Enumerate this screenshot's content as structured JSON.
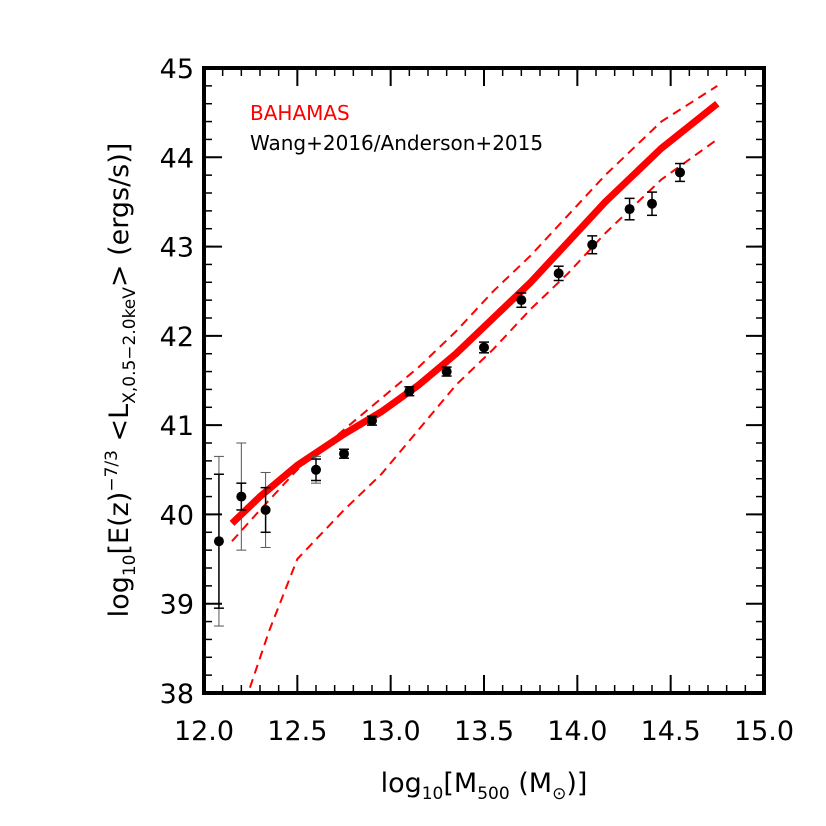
{
  "chart_data": {
    "type": "scatter",
    "xlabel": {
      "prefix": "log",
      "prefix_sub": "10",
      "body": "[M",
      "body_sub": "500",
      "tail": " (M",
      "tail_sub": "⊙",
      "end": ")]"
    },
    "ylabel": {
      "prefix": "log",
      "prefix_sub": "10",
      "body": "[E(z)",
      "body_sup": "−7/3",
      "mid": " <L",
      "mid_sub": "X,0.5−2.0keV",
      "end": "> (ergs/s)]"
    },
    "xlim": [
      12.0,
      15.0
    ],
    "ylim": [
      38,
      45
    ],
    "x_ticks": [
      "12.0",
      "12.5",
      "13.0",
      "13.5",
      "14.0",
      "14.5",
      "15.0"
    ],
    "y_ticks": [
      "38",
      "39",
      "40",
      "41",
      "42",
      "43",
      "44",
      "45"
    ],
    "grid": false,
    "legend_position": "top-left",
    "legend": [
      {
        "label": "BAHAMAS",
        "color": "#ff0000"
      },
      {
        "label": "Wang+2016/Anderson+2015",
        "color": "#000000"
      }
    ],
    "series": [
      {
        "name": "BAHAMAS",
        "style": "solid",
        "color": "#ff0000",
        "x": [
          12.15,
          12.3,
          12.5,
          12.75,
          12.95,
          13.15,
          13.35,
          13.55,
          13.75,
          13.95,
          14.15,
          14.45,
          14.75
        ],
        "y": [
          39.9,
          40.2,
          40.55,
          40.9,
          41.15,
          41.45,
          41.8,
          42.2,
          42.6,
          43.05,
          43.5,
          44.1,
          44.6
        ]
      },
      {
        "name": "BAHAMAS upper",
        "style": "dashed",
        "color": "#ff0000",
        "x": [
          12.15,
          12.3,
          12.5,
          12.75,
          12.95,
          13.15,
          13.35,
          13.55,
          13.75,
          13.95,
          14.15,
          14.45,
          14.75
        ],
        "y": [
          39.7,
          40.05,
          40.5,
          40.95,
          41.3,
          41.65,
          42.05,
          42.5,
          42.9,
          43.35,
          43.8,
          44.4,
          44.8
        ]
      },
      {
        "name": "BAHAMAS lower",
        "style": "dashed",
        "color": "#ff0000",
        "x": [
          12.22,
          12.35,
          12.5,
          12.75,
          12.95,
          13.15,
          13.35,
          13.55,
          13.75,
          13.95,
          14.15,
          14.45,
          14.75
        ],
        "y": [
          37.9,
          38.7,
          39.5,
          40.05,
          40.45,
          40.95,
          41.45,
          41.85,
          42.3,
          42.7,
          43.15,
          43.75,
          44.2
        ]
      },
      {
        "name": "Wang+2016/Anderson+2015",
        "style": "points",
        "color": "#000000",
        "x": [
          12.08,
          12.2,
          12.33,
          12.6,
          12.75,
          12.9,
          13.1,
          13.3,
          13.5,
          13.7,
          13.9,
          14.08,
          14.28,
          14.4,
          14.55
        ],
        "y": [
          39.7,
          40.2,
          40.05,
          40.5,
          40.68,
          41.05,
          41.38,
          41.6,
          41.87,
          42.4,
          42.7,
          43.02,
          43.42,
          43.48,
          43.83
        ],
        "err_inner": [
          0.75,
          0.15,
          0.25,
          0.12,
          0.05,
          0.05,
          0.05,
          0.05,
          0.06,
          0.08,
          0.08,
          0.1,
          0.12,
          0.13,
          0.1
        ],
        "err_outer": [
          0.95,
          0.6,
          0.42,
          0.15,
          0.05,
          0.05,
          0.05,
          0.05,
          0.06,
          0.08,
          0.08,
          0.1,
          0.12,
          0.13,
          0.1
        ]
      }
    ]
  }
}
